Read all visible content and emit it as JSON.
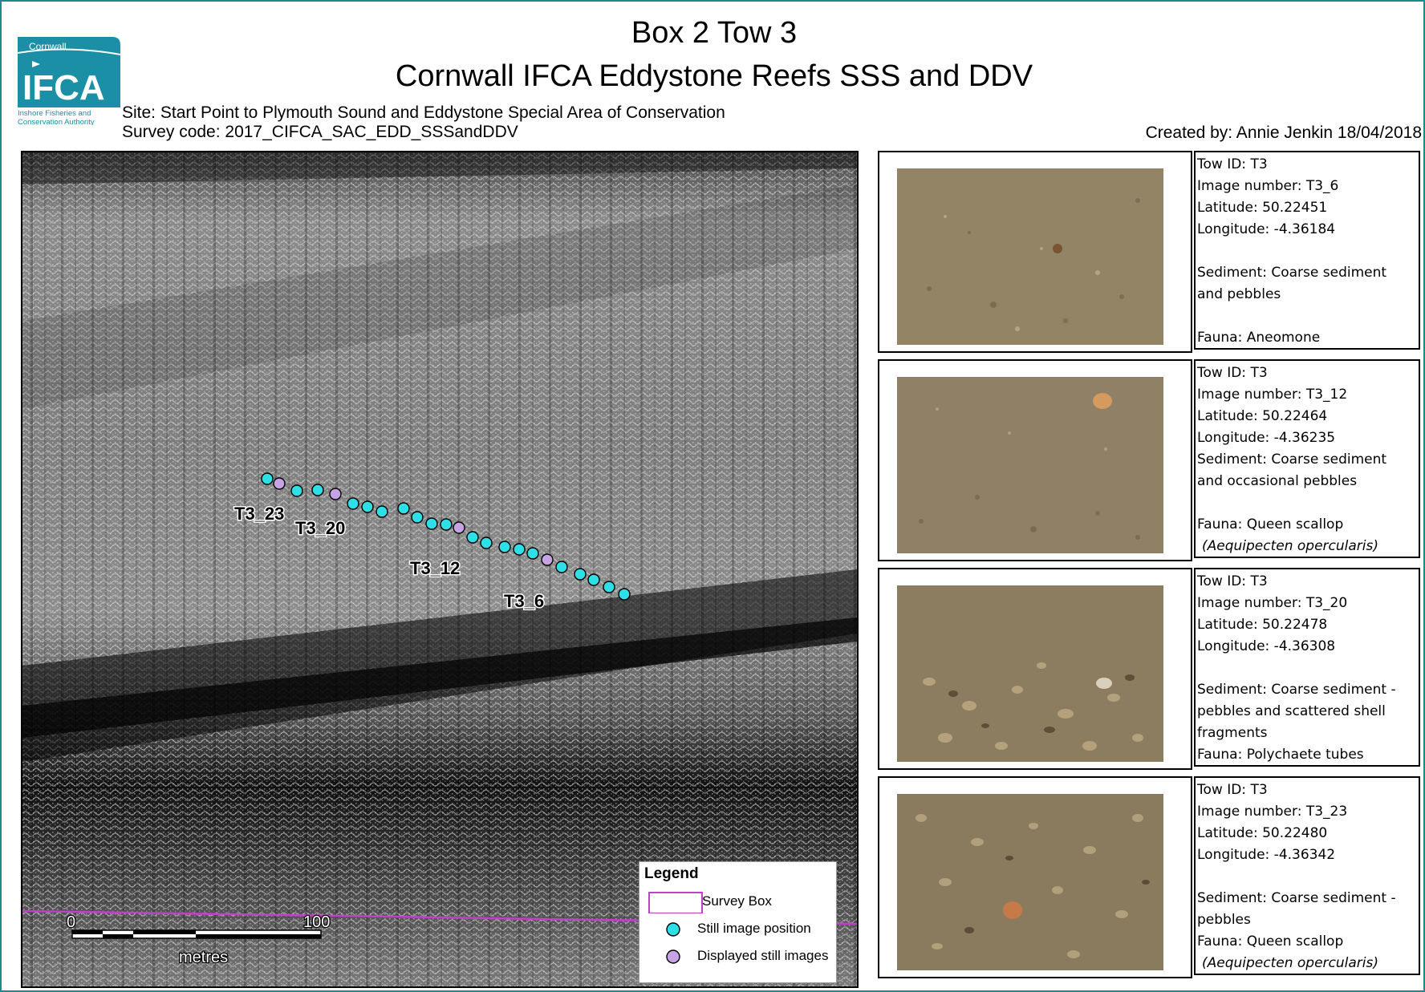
{
  "header": {
    "title_line1": "Box 2  Tow 3",
    "title_line2": "Cornwall IFCA Eddystone Reefs SSS and DDV",
    "site": "Site: Start Point to Plymouth Sound and Eddystone Special Area of Conservation",
    "survey_code": "Survey code: 2017_CIFCA_SAC_EDD_SSSandDDV",
    "created_by": "Created by: Annie Jenkin 18/04/2018"
  },
  "logo": {
    "top_text": "Cornwall",
    "main_text": "IFCA",
    "sub_line1": "Inshore Fisheries and",
    "sub_line2": "Conservation Authority",
    "color": "#1a8fa6"
  },
  "map": {
    "labels": {
      "t3_23": "T3_23",
      "t3_20": "T3_20",
      "t3_12": "T3_12",
      "t3_6": "T3_6"
    },
    "scale_bar": {
      "zero": "0",
      "hundred": "100",
      "unit": "metres"
    },
    "colors": {
      "still": "#2ee0e6",
      "displayed": "#c7a3e6",
      "survey_box": "#c040c8"
    }
  },
  "legend": {
    "title": "Legend",
    "items": [
      {
        "label": "Survey Box"
      },
      {
        "label": "Still image position"
      },
      {
        "label": "Displayed still images"
      }
    ]
  },
  "photos": [
    {
      "tow_id": "Tow ID: T3",
      "image_number": "Image number: T3_6",
      "latitude": "Latitude: 50.22451",
      "longitude": "Longitude: -4.36184",
      "sediment_1": "Sediment: Coarse sediment",
      "sediment_2": "and pebbles",
      "fauna_1": "Fauna: Aneomone"
    },
    {
      "tow_id": "Tow ID: T3",
      "image_number": "Image number: T3_12",
      "latitude": "Latitude: 50.22464",
      "longitude": "Longitude: -4.36235",
      "sediment_1": "Sediment: Coarse sediment",
      "sediment_2": "and occasional  pebbles",
      "fauna_1": "Fauna: Queen scallop",
      "fauna_2": "(Aequipecten opercularis)"
    },
    {
      "tow_id": "Tow ID: T3",
      "image_number": "Image number: T3_20",
      "latitude": "Latitude: 50.22478",
      "longitude": "Longitude: -4.36308",
      "sediment_1": "Sediment: Coarse sediment -",
      "sediment_2": "pebbles  and scattered shell",
      "sediment_3": "fragments",
      "fauna_1": "Fauna: Polychaete tubes"
    },
    {
      "tow_id": "Tow ID: T3",
      "image_number": "Image number: T3_23",
      "latitude": "Latitude: 50.22480",
      "longitude": "Longitude: -4.36342",
      "sediment_1": "Sediment: Coarse sediment -",
      "sediment_2": "pebbles",
      "fauna_1": "Fauna: Queen scallop",
      "fauna_2": "(Aequipecten opercularis)"
    }
  ]
}
